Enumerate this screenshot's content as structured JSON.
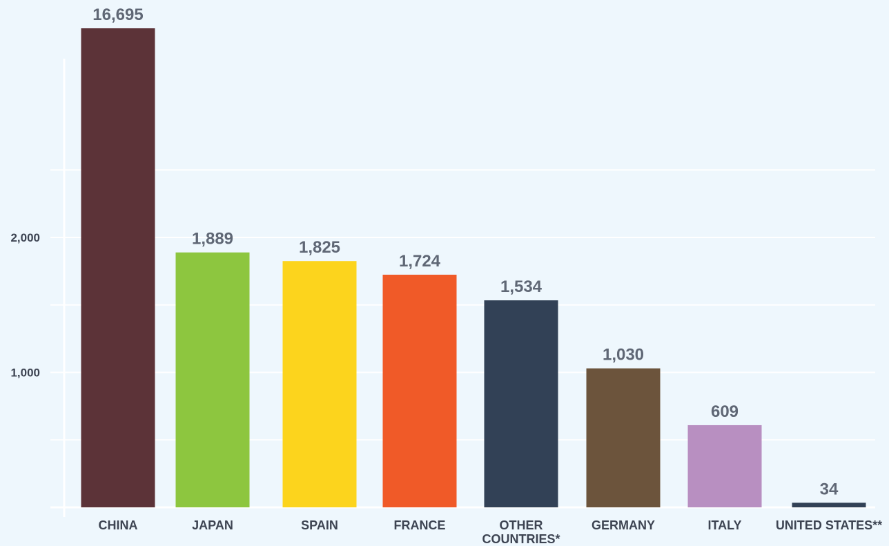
{
  "chart_data": {
    "type": "bar",
    "categories": [
      "CHINA",
      "JAPAN",
      "SPAIN",
      "FRANCE",
      "OTHER COUNTRIES*",
      "GERMANY",
      "ITALY",
      "UNITED STATES**"
    ],
    "category_lines": [
      [
        "CHINA"
      ],
      [
        "JAPAN"
      ],
      [
        "SPAIN"
      ],
      [
        "FRANCE"
      ],
      [
        "OTHER",
        "COUNTRIES*"
      ],
      [
        "GERMANY"
      ],
      [
        "ITALY"
      ],
      [
        "UNITED STATES**"
      ]
    ],
    "values": [
      16695,
      1889,
      1825,
      1724,
      1534,
      1030,
      609,
      34
    ],
    "value_labels": [
      "16,695",
      "1,889",
      "1,825",
      "1,724",
      "1,534",
      "1,030",
      "609",
      "34"
    ],
    "colors": [
      "#5c3338",
      "#8dc63f",
      "#fcd41d",
      "#f05a28",
      "#324156",
      "#6c543c",
      "#b88fc1",
      "#324156"
    ],
    "ylim": [
      0,
      2000
    ],
    "yticks": [
      1000,
      2000
    ],
    "ytick_labels": [
      "1,000",
      "2,000"
    ],
    "grid": true,
    "notes": "CHINA bar is truncated (exceeds axis range)"
  }
}
